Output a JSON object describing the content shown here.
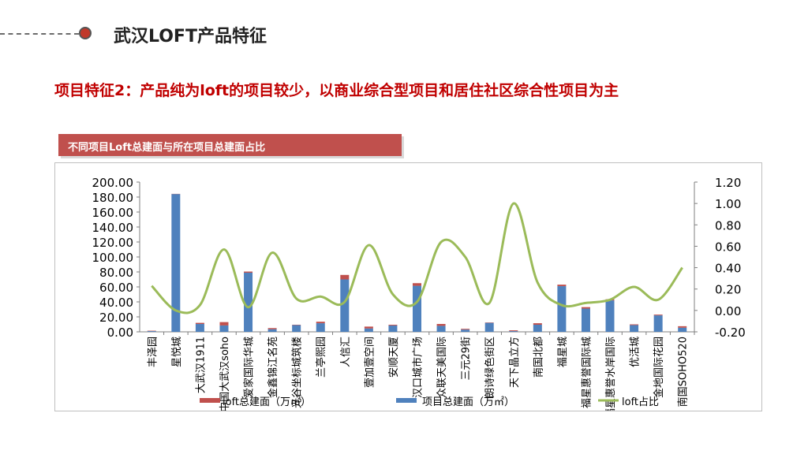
{
  "header": {
    "title": "武汉LOFT产品特征"
  },
  "subtitle": "项目特征2：产品纯为loft的项目较少，以商业综合型项目和居住社区综合性项目为主",
  "colors": {
    "accent": "#c00000",
    "loft_bar": "#c0504d",
    "project_bar": "#4f81bd",
    "line": "#9bbb59",
    "banner": "#c0504d"
  },
  "chart_data": {
    "type": "bar",
    "title": "不同项目Loft总建面与所在项目总建面占比",
    "categories": [
      "丰泽园",
      "星悦城",
      "大武汉1911",
      "中国大武汉soho",
      "爱家国际华城",
      "金鑫锦江名苑",
      "光谷坐标城筑楼",
      "兰亭熙园",
      "人信汇",
      "壹加壹空间",
      "安顺天厦",
      "汉口城市广场",
      "众联天美国际",
      "三元29街",
      "朗诗绿色街区",
      "天下晶立方",
      "南国北都",
      "福星城",
      "福星惠誉国际城",
      "福星惠誉水岸国际",
      "优活城",
      "金地国际花园",
      "南国SOHO520"
    ],
    "series": [
      {
        "name": "loft总建面（万㎡）",
        "values": [
          0.5,
          0.3,
          1.5,
          4.5,
          1.5,
          1.5,
          0.5,
          2.0,
          6.0,
          2.5,
          1.0,
          3.5,
          2.5,
          1.0,
          0.5,
          1.0,
          2.0,
          2.0,
          2.0,
          1.5,
          1.0,
          1.0,
          2.0
        ]
      },
      {
        "name": "项目总建面（万㎡）",
        "values": [
          1.0,
          184.0,
          10.5,
          8.5,
          79.0,
          3.5,
          9.0,
          11.5,
          70.0,
          4.5,
          8.5,
          61.5,
          8.0,
          3.0,
          12.0,
          1.0,
          9.5,
          61.0,
          31.0,
          42.0,
          9.0,
          22.0,
          5.5
        ]
      },
      {
        "name": "loft占比",
        "axis": "right",
        "values": [
          0.23,
          0.0,
          0.05,
          0.57,
          0.03,
          0.54,
          0.11,
          0.13,
          0.08,
          0.61,
          0.15,
          0.08,
          0.64,
          0.5,
          0.07,
          1.0,
          0.26,
          0.05,
          0.07,
          0.1,
          0.22,
          0.1,
          0.4
        ]
      }
    ],
    "y_left": {
      "min": 0,
      "max": 200,
      "step": 20,
      "ticks": [
        "0.00",
        "20.00",
        "40.00",
        "60.00",
        "80.00",
        "100.00",
        "120.00",
        "140.00",
        "160.00",
        "180.00",
        "200.00"
      ]
    },
    "y_right": {
      "min": -0.2,
      "max": 1.2,
      "step": 0.2,
      "ticks": [
        "-0.20",
        "0.00",
        "0.20",
        "0.40",
        "0.60",
        "0.80",
        "1.00",
        "1.20"
      ]
    },
    "legend": {
      "position": "bottom",
      "items": [
        "loft总建面（万㎡）",
        "项目总建面（万㎡）",
        "loft占比"
      ]
    },
    "grid": false
  }
}
